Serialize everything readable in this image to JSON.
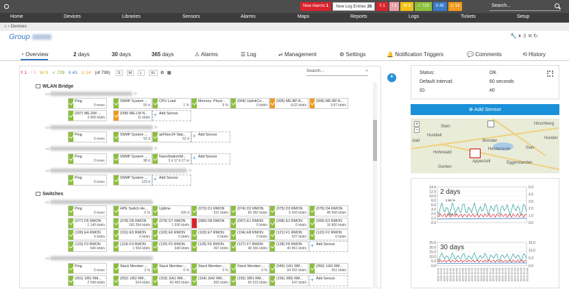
{
  "topbar": {
    "new_alarms": "New Alarms",
    "new_alarms_count": "1",
    "new_log": "New Log Entries",
    "new_log_count": "26",
    "b1": "!! 1",
    "b2": "! 3",
    "b3": "W 9",
    "b4": "✓ 729",
    "b5": "II 43",
    "b6": "U 14",
    "search_placeholder": "Search..."
  },
  "nav": [
    "Home",
    "Devices",
    "Libraries",
    "Sensors",
    "Alarms",
    "Maps",
    "Reports",
    "Logs",
    "Tickets",
    "Setup"
  ],
  "breadcrumb": "Devices",
  "group_title": "Group",
  "tabs": [
    "Overview",
    "2",
    "days",
    "30",
    "days",
    "365",
    "days",
    "Alarms",
    "Log",
    "Management",
    "Settings",
    "Notification Triggers",
    "Comments",
    "History"
  ],
  "filter": {
    "f1": "!! 1",
    "f2": "! 3",
    "f3": "W 9",
    "f4": "✓ 729",
    "f5": "II 43",
    "f6": "U 14",
    "total": "(of 799)",
    "s": "S",
    "m": "M",
    "l": "L",
    "xl": "XL",
    "search": "Search..."
  },
  "groups": [
    {
      "name": "WLAN Bridge"
    },
    {
      "name": "Switches"
    }
  ],
  "rows": [
    [
      [
        "ok",
        "Ping",
        "0 msec"
      ],
      [
        "ok",
        "SNMP System ...",
        "55 d"
      ],
      [
        "ok",
        "CPU Load",
        "1 %"
      ],
      [
        "ok",
        "Memory: Physi...",
        "5 %"
      ],
      [
        "ok",
        "(004) UplinkCo...",
        "0 kbit/s"
      ],
      [
        "unu",
        "(005) ME-BP A...",
        "8,02 kbit/s"
      ],
      [
        "unu",
        "(006) ME-BP A...",
        "9,97 kbit/s"
      ]
    ],
    [
      [
        "ok",
        "(007) ME-DM ...",
        "3 909 kbit/s"
      ],
      [
        "unu",
        "(008) ME-LM N...",
        "11 kbit/s"
      ],
      [
        "add",
        "Add Sensor",
        ""
      ]
    ],
    [
      [
        "ok",
        "Ping",
        "0 msec"
      ],
      [
        "ok",
        "SNMP System ...",
        "52 d"
      ],
      [
        "ok",
        "airFiber24 Stat...",
        "52 d"
      ],
      [
        "add",
        "Add Sensor",
        ""
      ]
    ],
    [
      [
        "ok",
        "Ping",
        "0 msec"
      ],
      [
        "ok",
        "SNMP System ...",
        "98 d"
      ],
      [
        "ok",
        "NanoStationWi...",
        "3 d 17 h 27 m"
      ],
      [
        "add",
        "Add Sensor",
        ""
      ]
    ],
    [
      [
        "ok",
        "Ping",
        "0 msec"
      ],
      [
        "ok",
        "SNMP System ...",
        "123 d"
      ],
      [
        "add",
        "Add Sensor",
        ""
      ]
    ],
    [
      [
        "ok",
        "Ping",
        "0 msec"
      ],
      [
        "ok",
        "HPE Switch He...",
        "0 %"
      ],
      [
        "ok",
        "Uptime",
        "166 d"
      ],
      [
        "ok",
        "(073) D1 RMON",
        "531 kbit/s"
      ],
      [
        "ok",
        "(074) D2 RMON",
        "85 382 kbit/s"
      ],
      [
        "ok",
        "(075) D3 RMON",
        "6 543 kbit/s"
      ],
      [
        "ok",
        "(076) D4 RMON",
        "48 568 kbit/s"
      ]
    ],
    [
      [
        "ok",
        "(077) D5 RMON",
        "1 140 kbit/s"
      ],
      [
        "ok",
        "(078) D6 RMON",
        "160 264 kbit/s"
      ],
      [
        "ok",
        "(079) D7 RMON",
        "1 936 kbit/s"
      ],
      [
        "down",
        "(080) D8 RMON",
        ""
      ],
      [
        "ok",
        "(097) E1 RMON",
        "0 kbit/s"
      ],
      [
        "ok",
        "(098) E2 RMON",
        "0 kbit/s"
      ],
      [
        "ok",
        "(099) E3 RMON",
        "16 800 kbit/s"
      ]
    ],
    [
      [
        "ok",
        "(100) E4 RMON",
        "0 kbit/s"
      ],
      [
        "ok",
        "(101) E5 RMON",
        "0 kbit/s"
      ],
      [
        "ok",
        "(102) E6 RMON",
        "0 kbit/s"
      ],
      [
        "ok",
        "(103) E7 RMON",
        "0 kbit/s"
      ],
      [
        "ok",
        "(104) E8 RMON",
        "0 kbit/s"
      ],
      [
        "ok",
        "(121) F1 RMON",
        "537 kbit/s"
      ],
      [
        "ok",
        "(122) F2 RMON",
        "0 kbit/s"
      ]
    ],
    [
      [
        "ok",
        "(123) F3 RMON",
        "546 kbit/s"
      ],
      [
        "ok",
        "(124) F4 RMON",
        "1 554 kbit/s"
      ],
      [
        "ok",
        "(125) F5 RMON",
        "648 kbit/s"
      ],
      [
        "ok",
        "(126) F6 RMON",
        "497 kbit/s"
      ],
      [
        "ok",
        "(127) F7 RMON",
        "48 366 kbit/s"
      ],
      [
        "ok",
        "(128) F8 RMON",
        "40 851 kbit/s"
      ],
      [
        "add",
        "Add Sensor",
        ""
      ]
    ],
    [
      [
        "ok",
        "Ping",
        "0 msec"
      ],
      [
        "ok",
        "Stack Member:...",
        "2 %"
      ],
      [
        "ok",
        "Stack Member:...",
        "0 %"
      ],
      [
        "ok",
        "Stack Member:...",
        "0 %"
      ],
      [
        "ok",
        "Stack Member:...",
        "0 %"
      ],
      [
        "ok",
        "(049) 1/A1 RM...",
        "94 552 kbit/s"
      ],
      [
        "ok",
        "(050) 1/A2 RM...",
        "551 kbit/s"
      ]
    ],
    [
      [
        "ok",
        "(051) 1/B1 RM...",
        "2 049 kbit/s"
      ],
      [
        "ok",
        "(052) 1/B2 RM...",
        "524 kbit/s"
      ],
      [
        "ok",
        "(153) 3/A1 RM...",
        "65 483 kbit/s"
      ],
      [
        "ok",
        "(154) 3/A2 RM...",
        "555 kbit/s"
      ],
      [
        "ok",
        "(155) 3/B1 RM...",
        "65 915 kbit/s"
      ],
      [
        "ok",
        "(156) 3/B2 RM...",
        "547 kbit/s"
      ],
      [
        "add",
        "Add Sensor",
        ""
      ]
    ]
  ],
  "info": {
    "status_label": "Status:",
    "status_value": "OK",
    "interval_label": "Default Interval:",
    "interval_value": "60 seconds",
    "id_label": "ID:",
    "id_value": "#0"
  },
  "add_sensor_button": "Add Sensor",
  "map_labels": [
    "Stein",
    "Hundwil",
    "Brender",
    "Heistersrute",
    "Gais",
    "Hirschberg",
    "Hohnwald",
    "Gonten",
    "Appenzell",
    "Eggerstanden",
    "statt",
    "Hunder"
  ],
  "chart_data": [
    {
      "type": "line",
      "title": "2 days",
      "y_left_ticks": [
        "14.0",
        "12.0",
        "10.0",
        "8.0",
        "6.0",
        "4.0",
        "2.0",
        "0.0",
        "-2.0"
      ],
      "y_right_ticks": [
        "5.0",
        "4.0",
        "3.0",
        "2.0",
        "1.0",
        "0.0"
      ],
      "annotations": [
        "2.86 %",
        "0.04 %"
      ]
    },
    {
      "type": "line",
      "title": "30 days",
      "y_left_ticks": [
        "25.0",
        "20.0",
        "15.0",
        "10.0",
        "5.0",
        "0.0"
      ],
      "y_right_ticks": [
        "15.0",
        "10.0",
        "5.0",
        "0.0"
      ],
      "x_ticks": [
        "10.01.2020",
        "11.01.2020",
        "12.01.2020",
        "13.01.2020",
        "14.01.2020",
        "15.01.2020",
        "16.01.2020",
        "17.01.2020",
        "18.01.2020",
        "19.01.2020",
        "20.01.2020",
        "21.01.2020",
        "22.01.2020",
        "23.01.2020",
        "24.01.2020",
        "25.01.2020",
        "26.01.2020",
        "27.01.2020",
        "28.01.2020",
        "29.01.2020",
        "30.01.2020",
        "31.01.2020",
        "01.02.2020",
        "02.02.2020",
        "03.02.2020",
        "04.02.2020",
        "05.02.2020",
        "06.02.2020",
        "07.02.2020",
        "08.02.2020"
      ]
    }
  ]
}
